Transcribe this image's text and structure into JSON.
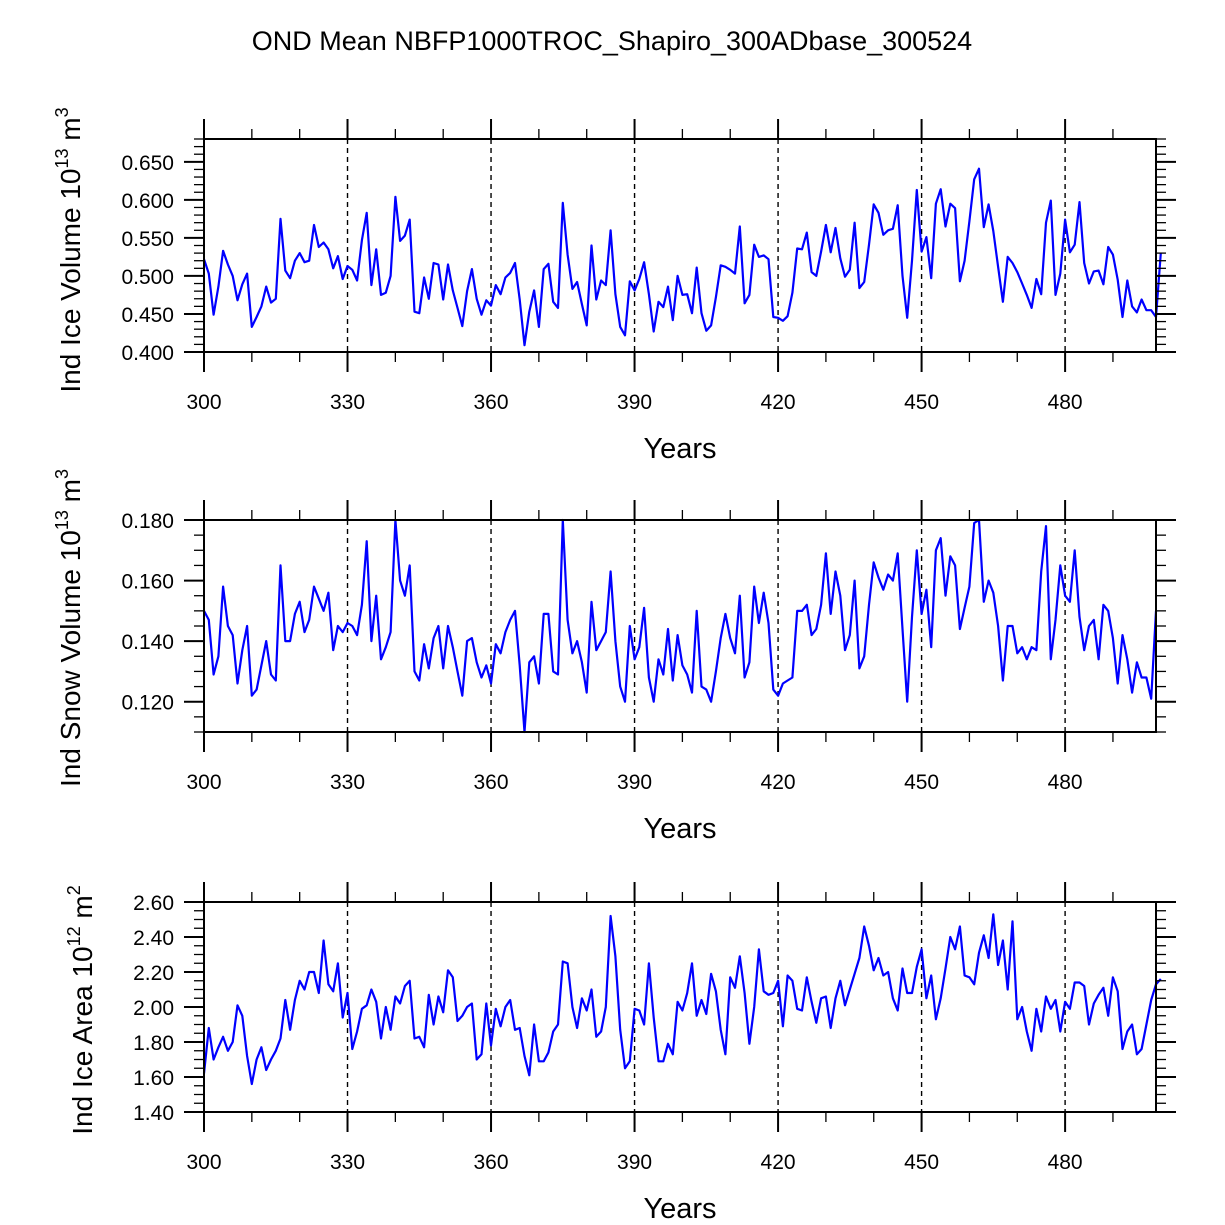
{
  "chart_data": {
    "type": "line",
    "title": "OND Mean NBFP1000TROC_Shapiro_300ADbase_300524",
    "line_color": "#0000ff",
    "x_start": 300,
    "x_step": 1,
    "panels": [
      {
        "name": "ice-volume",
        "ylabel": "Ind Ice Volume 10",
        "ylabel_exp": "13",
        "ylabel_unit": " m",
        "ylabel_unit_exp": "3",
        "xlabel": "Years",
        "xlim": [
          300,
          499
        ],
        "ylim": [
          0.4,
          0.68
        ],
        "xticks": [
          300,
          330,
          360,
          390,
          420,
          450,
          480
        ],
        "xtick_labels": [
          "300",
          "330",
          "360",
          "390",
          "420",
          "450",
          "480"
        ],
        "yticks": [
          0.4,
          0.45,
          0.5,
          0.55,
          0.6,
          0.65
        ],
        "ytick_labels": [
          "0.400",
          "0.450",
          "0.500",
          "0.550",
          "0.600",
          "0.650"
        ],
        "y_minor_step": 0.01,
        "ref_lines_x": [
          330,
          360,
          390,
          420,
          450,
          480
        ],
        "values": [
          0.522,
          0.503,
          0.449,
          0.486,
          0.533,
          0.515,
          0.5,
          0.468,
          0.489,
          0.503,
          0.433,
          0.446,
          0.46,
          0.486,
          0.465,
          0.47,
          0.575,
          0.507,
          0.497,
          0.52,
          0.53,
          0.518,
          0.52,
          0.567,
          0.538,
          0.544,
          0.535,
          0.51,
          0.526,
          0.496,
          0.513,
          0.508,
          0.494,
          0.547,
          0.583,
          0.488,
          0.535,
          0.475,
          0.478,
          0.5,
          0.604,
          0.546,
          0.553,
          0.574,
          0.453,
          0.451,
          0.498,
          0.47,
          0.517,
          0.515,
          0.469,
          0.515,
          0.481,
          0.458,
          0.434,
          0.48,
          0.509,
          0.47,
          0.449,
          0.468,
          0.461,
          0.488,
          0.476,
          0.498,
          0.504,
          0.517,
          0.469,
          0.409,
          0.453,
          0.481,
          0.433,
          0.509,
          0.516,
          0.466,
          0.458,
          0.596,
          0.528,
          0.483,
          0.492,
          0.463,
          0.435,
          0.54,
          0.469,
          0.494,
          0.488,
          0.56,
          0.476,
          0.433,
          0.422,
          0.493,
          0.481,
          0.496,
          0.518,
          0.476,
          0.427,
          0.466,
          0.459,
          0.486,
          0.442,
          0.5,
          0.475,
          0.476,
          0.451,
          0.511,
          0.451,
          0.428,
          0.435,
          0.472,
          0.514,
          0.512,
          0.508,
          0.503,
          0.565,
          0.464,
          0.475,
          0.541,
          0.525,
          0.527,
          0.522,
          0.446,
          0.445,
          0.441,
          0.447,
          0.478,
          0.536,
          0.535,
          0.557,
          0.505,
          0.5,
          0.532,
          0.567,
          0.531,
          0.563,
          0.523,
          0.499,
          0.508,
          0.57,
          0.484,
          0.492,
          0.541,
          0.594,
          0.583,
          0.554,
          0.56,
          0.562,
          0.593,
          0.5,
          0.445,
          0.52,
          0.613,
          0.532,
          0.551,
          0.497,
          0.595,
          0.614,
          0.565,
          0.595,
          0.589,
          0.493,
          0.52,
          0.572,
          0.627,
          0.641,
          0.564,
          0.594,
          0.559,
          0.512,
          0.466,
          0.525,
          0.517,
          0.505,
          0.49,
          0.475,
          0.458,
          0.496,
          0.476,
          0.57,
          0.599,
          0.475,
          0.503,
          0.574,
          0.531,
          0.541,
          0.597,
          0.517,
          0.49,
          0.506,
          0.507,
          0.489,
          0.538,
          0.528,
          0.495,
          0.446,
          0.494,
          0.46,
          0.452,
          0.469,
          0.455,
          0.455,
          0.446,
          0.53
        ]
      },
      {
        "name": "snow-volume",
        "ylabel": "Ind Snow Volume 10",
        "ylabel_exp": "13",
        "ylabel_unit": " m",
        "ylabel_unit_exp": "3",
        "xlabel": "Years",
        "xlim": [
          300,
          499
        ],
        "ylim": [
          0.11,
          0.18
        ],
        "xticks": [
          300,
          330,
          360,
          390,
          420,
          450,
          480
        ],
        "xtick_labels": [
          "300",
          "330",
          "360",
          "390",
          "420",
          "450",
          "480"
        ],
        "yticks": [
          0.12,
          0.14,
          0.16,
          0.18
        ],
        "ytick_labels": [
          "0.120",
          "0.140",
          "0.160",
          "0.180"
        ],
        "y_minor_step": 0.005,
        "ref_lines_x": [
          330,
          360,
          390,
          420,
          450,
          480
        ],
        "values": [
          0.15,
          0.147,
          0.129,
          0.135,
          0.158,
          0.145,
          0.142,
          0.126,
          0.137,
          0.145,
          0.122,
          0.124,
          0.132,
          0.14,
          0.129,
          0.127,
          0.165,
          0.14,
          0.14,
          0.149,
          0.153,
          0.143,
          0.147,
          0.158,
          0.154,
          0.15,
          0.156,
          0.137,
          0.145,
          0.143,
          0.146,
          0.145,
          0.142,
          0.152,
          0.173,
          0.14,
          0.155,
          0.134,
          0.138,
          0.143,
          0.18,
          0.16,
          0.155,
          0.165,
          0.13,
          0.127,
          0.139,
          0.131,
          0.141,
          0.145,
          0.131,
          0.145,
          0.138,
          0.13,
          0.122,
          0.14,
          0.141,
          0.133,
          0.128,
          0.132,
          0.126,
          0.139,
          0.136,
          0.143,
          0.147,
          0.15,
          0.132,
          0.11,
          0.133,
          0.135,
          0.126,
          0.149,
          0.149,
          0.13,
          0.129,
          0.18,
          0.147,
          0.136,
          0.14,
          0.133,
          0.123,
          0.153,
          0.137,
          0.14,
          0.143,
          0.163,
          0.14,
          0.125,
          0.12,
          0.145,
          0.134,
          0.138,
          0.151,
          0.128,
          0.12,
          0.134,
          0.129,
          0.144,
          0.127,
          0.142,
          0.132,
          0.129,
          0.123,
          0.15,
          0.125,
          0.124,
          0.12,
          0.13,
          0.141,
          0.149,
          0.141,
          0.136,
          0.155,
          0.128,
          0.133,
          0.158,
          0.146,
          0.156,
          0.146,
          0.124,
          0.122,
          0.126,
          0.127,
          0.128,
          0.15,
          0.15,
          0.152,
          0.142,
          0.144,
          0.152,
          0.169,
          0.149,
          0.163,
          0.155,
          0.137,
          0.142,
          0.16,
          0.131,
          0.135,
          0.152,
          0.166,
          0.161,
          0.157,
          0.162,
          0.16,
          0.169,
          0.144,
          0.12,
          0.148,
          0.17,
          0.149,
          0.157,
          0.138,
          0.17,
          0.174,
          0.155,
          0.168,
          0.165,
          0.144,
          0.151,
          0.158,
          0.179,
          0.18,
          0.153,
          0.16,
          0.156,
          0.145,
          0.127,
          0.145,
          0.145,
          0.136,
          0.138,
          0.134,
          0.138,
          0.137,
          0.163,
          0.178,
          0.134,
          0.147,
          0.165,
          0.155,
          0.153,
          0.17,
          0.148,
          0.137,
          0.145,
          0.147,
          0.134,
          0.152,
          0.15,
          0.141,
          0.126,
          0.142,
          0.134,
          0.123,
          0.133,
          0.128,
          0.128,
          0.121,
          0.15
        ]
      },
      {
        "name": "ice-area",
        "ylabel": "Ind Ice Area 10",
        "ylabel_exp": "12",
        "ylabel_unit": " m",
        "ylabel_unit_exp": "2",
        "xlabel": "Years",
        "xlim": [
          300,
          499
        ],
        "ylim": [
          1.4,
          2.6
        ],
        "xticks": [
          300,
          330,
          360,
          390,
          420,
          450,
          480
        ],
        "xtick_labels": [
          "300",
          "330",
          "360",
          "390",
          "420",
          "450",
          "480"
        ],
        "yticks": [
          1.4,
          1.6,
          1.8,
          2.0,
          2.2,
          2.4,
          2.6
        ],
        "ytick_labels": [
          "1.40",
          "1.60",
          "1.80",
          "2.00",
          "2.20",
          "2.40",
          "2.60"
        ],
        "y_minor_step": 0.05,
        "ref_lines_x": [
          330,
          360,
          390,
          420,
          450,
          480
        ],
        "values": [
          1.62,
          1.88,
          1.7,
          1.77,
          1.83,
          1.75,
          1.8,
          2.01,
          1.95,
          1.72,
          1.56,
          1.7,
          1.77,
          1.64,
          1.7,
          1.75,
          1.82,
          2.04,
          1.87,
          2.04,
          2.15,
          2.1,
          2.2,
          2.2,
          2.08,
          2.38,
          2.13,
          2.09,
          2.25,
          1.94,
          2.08,
          1.76,
          1.86,
          1.99,
          2.01,
          2.1,
          2.03,
          1.82,
          2.0,
          1.87,
          2.06,
          2.02,
          2.12,
          2.15,
          1.82,
          1.83,
          1.77,
          2.07,
          1.9,
          2.06,
          1.97,
          2.21,
          2.17,
          1.92,
          1.95,
          2.0,
          2.02,
          1.7,
          1.73,
          2.02,
          1.78,
          1.99,
          1.89,
          2.0,
          2.04,
          1.87,
          1.88,
          1.72,
          1.61,
          1.9,
          1.69,
          1.69,
          1.74,
          1.86,
          1.9,
          2.26,
          2.25,
          2.0,
          1.88,
          2.05,
          1.98,
          2.1,
          1.83,
          1.86,
          2.0,
          2.52,
          2.29,
          1.87,
          1.65,
          1.69,
          1.99,
          1.98,
          1.9,
          2.25,
          1.94,
          1.69,
          1.69,
          1.79,
          1.73,
          2.03,
          1.98,
          2.08,
          2.25,
          1.95,
          2.04,
          1.96,
          2.19,
          2.09,
          1.87,
          1.73,
          2.17,
          2.11,
          2.29,
          2.08,
          1.79,
          2.0,
          2.33,
          2.09,
          2.07,
          2.08,
          2.15,
          1.89,
          2.18,
          2.15,
          1.99,
          1.98,
          2.17,
          2.03,
          1.91,
          2.05,
          2.06,
          1.88,
          2.05,
          2.15,
          2.01,
          2.1,
          2.19,
          2.28,
          2.46,
          2.35,
          2.21,
          2.28,
          2.18,
          2.2,
          2.05,
          1.98,
          2.22,
          2.08,
          2.08,
          2.23,
          2.33,
          2.05,
          2.18,
          1.93,
          2.05,
          2.22,
          2.4,
          2.33,
          2.46,
          2.18,
          2.17,
          2.13,
          2.31,
          2.41,
          2.28,
          2.53,
          2.24,
          2.38,
          2.1,
          2.49,
          1.93,
          2.0,
          1.86,
          1.75,
          1.99,
          1.86,
          2.06,
          1.99,
          2.04,
          1.86,
          2.03,
          1.99,
          2.14,
          2.14,
          2.12,
          1.9,
          2.02,
          2.07,
          2.11,
          1.95,
          2.17,
          2.09,
          1.76,
          1.86,
          1.9,
          1.73,
          1.76,
          1.9,
          2.04,
          2.13,
          2.16
        ]
      }
    ]
  }
}
